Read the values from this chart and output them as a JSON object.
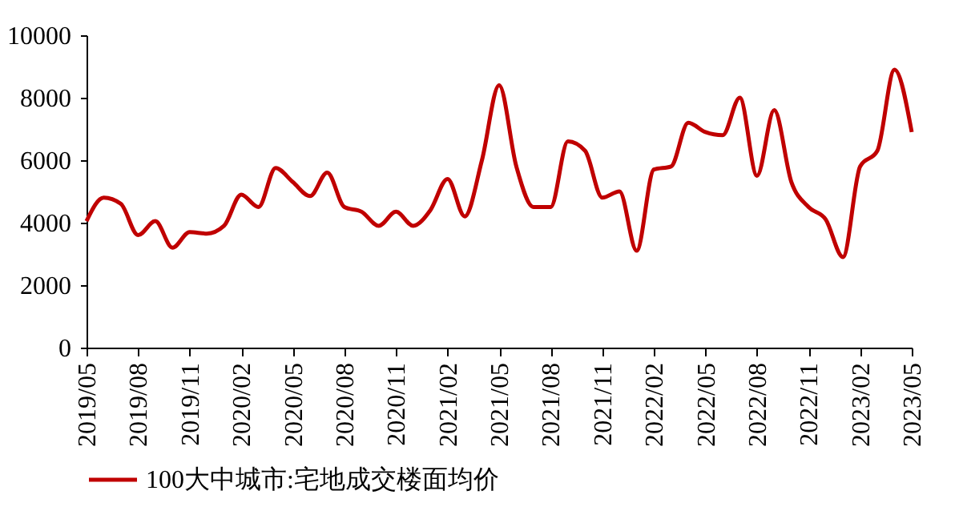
{
  "chart_data": {
    "type": "line",
    "categories": [
      "2019/05",
      null,
      null,
      "2019/08",
      null,
      null,
      "2019/11",
      null,
      null,
      "2020/02",
      null,
      null,
      "2020/05",
      null,
      null,
      "2020/08",
      null,
      null,
      "2020/11",
      null,
      null,
      "2021/02",
      null,
      null,
      "2021/05",
      null,
      null,
      "2021/08",
      null,
      null,
      "2021/11",
      null,
      null,
      "2022/02",
      null,
      null,
      "2022/05",
      null,
      null,
      "2022/08",
      null,
      null,
      "2022/11",
      null,
      null,
      "2023/02",
      null,
      null,
      "2023/05"
    ],
    "series": [
      {
        "name": "100大中城市:宅地成交楼面均价",
        "color": "#c00000",
        "values": [
          4050,
          4800,
          4600,
          3600,
          4050,
          3200,
          3700,
          3650,
          3900,
          4900,
          4500,
          5750,
          5300,
          4850,
          5600,
          4500,
          4350,
          3900,
          4350,
          3900,
          4400,
          5400,
          4200,
          6000,
          8400,
          5800,
          4500,
          4500,
          6600,
          6300,
          4800,
          5000,
          3100,
          5700,
          5800,
          7200,
          6900,
          6800,
          8000,
          5500,
          7600,
          5300,
          4500,
          4100,
          2900,
          5800,
          6300,
          8900,
          6900
        ]
      }
    ],
    "ylim": [
      0,
      10000
    ],
    "yticks": [
      0,
      2000,
      4000,
      6000,
      8000,
      10000
    ],
    "grid": false,
    "legend": "bottom",
    "marker": "none",
    "line_style": "solid"
  }
}
